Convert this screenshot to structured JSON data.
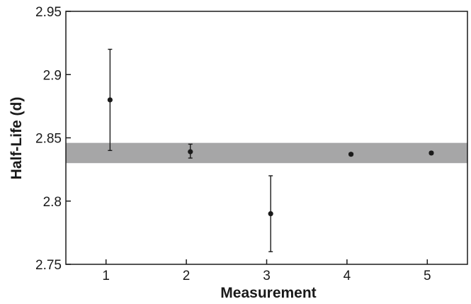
{
  "chart_data": {
    "type": "scatter",
    "title": "",
    "xlabel": "Measurement",
    "ylabel": "Half-Life (d)",
    "xlim": [
      0.5,
      5.5
    ],
    "ylim": [
      2.75,
      2.95
    ],
    "x_ticks": [
      1,
      2,
      3,
      4,
      5
    ],
    "x_tick_labels": [
      "1",
      "2",
      "3",
      "4",
      "5"
    ],
    "y_ticks": [
      2.75,
      2.8,
      2.85,
      2.9,
      2.95
    ],
    "y_tick_labels": [
      "2.75",
      "2.8",
      "2.85",
      "2.9",
      "2.95"
    ],
    "grid": false,
    "points": [
      {
        "x": 1,
        "y": 2.88,
        "err_low": 2.84,
        "err_high": 2.92
      },
      {
        "x": 2,
        "y": 2.839,
        "err_low": 2.834,
        "err_high": 2.845
      },
      {
        "x": 3,
        "y": 2.79,
        "err_low": 2.76,
        "err_high": 2.82
      },
      {
        "x": 4,
        "y": 2.837,
        "err_low": 2.836,
        "err_high": 2.838
      },
      {
        "x": 5,
        "y": 2.838,
        "err_low": 2.837,
        "err_high": 2.839
      }
    ],
    "band": {
      "low": 2.83,
      "high": 2.846,
      "color": "#a6a6a7"
    },
    "marker_color": "#1a1a1a"
  }
}
